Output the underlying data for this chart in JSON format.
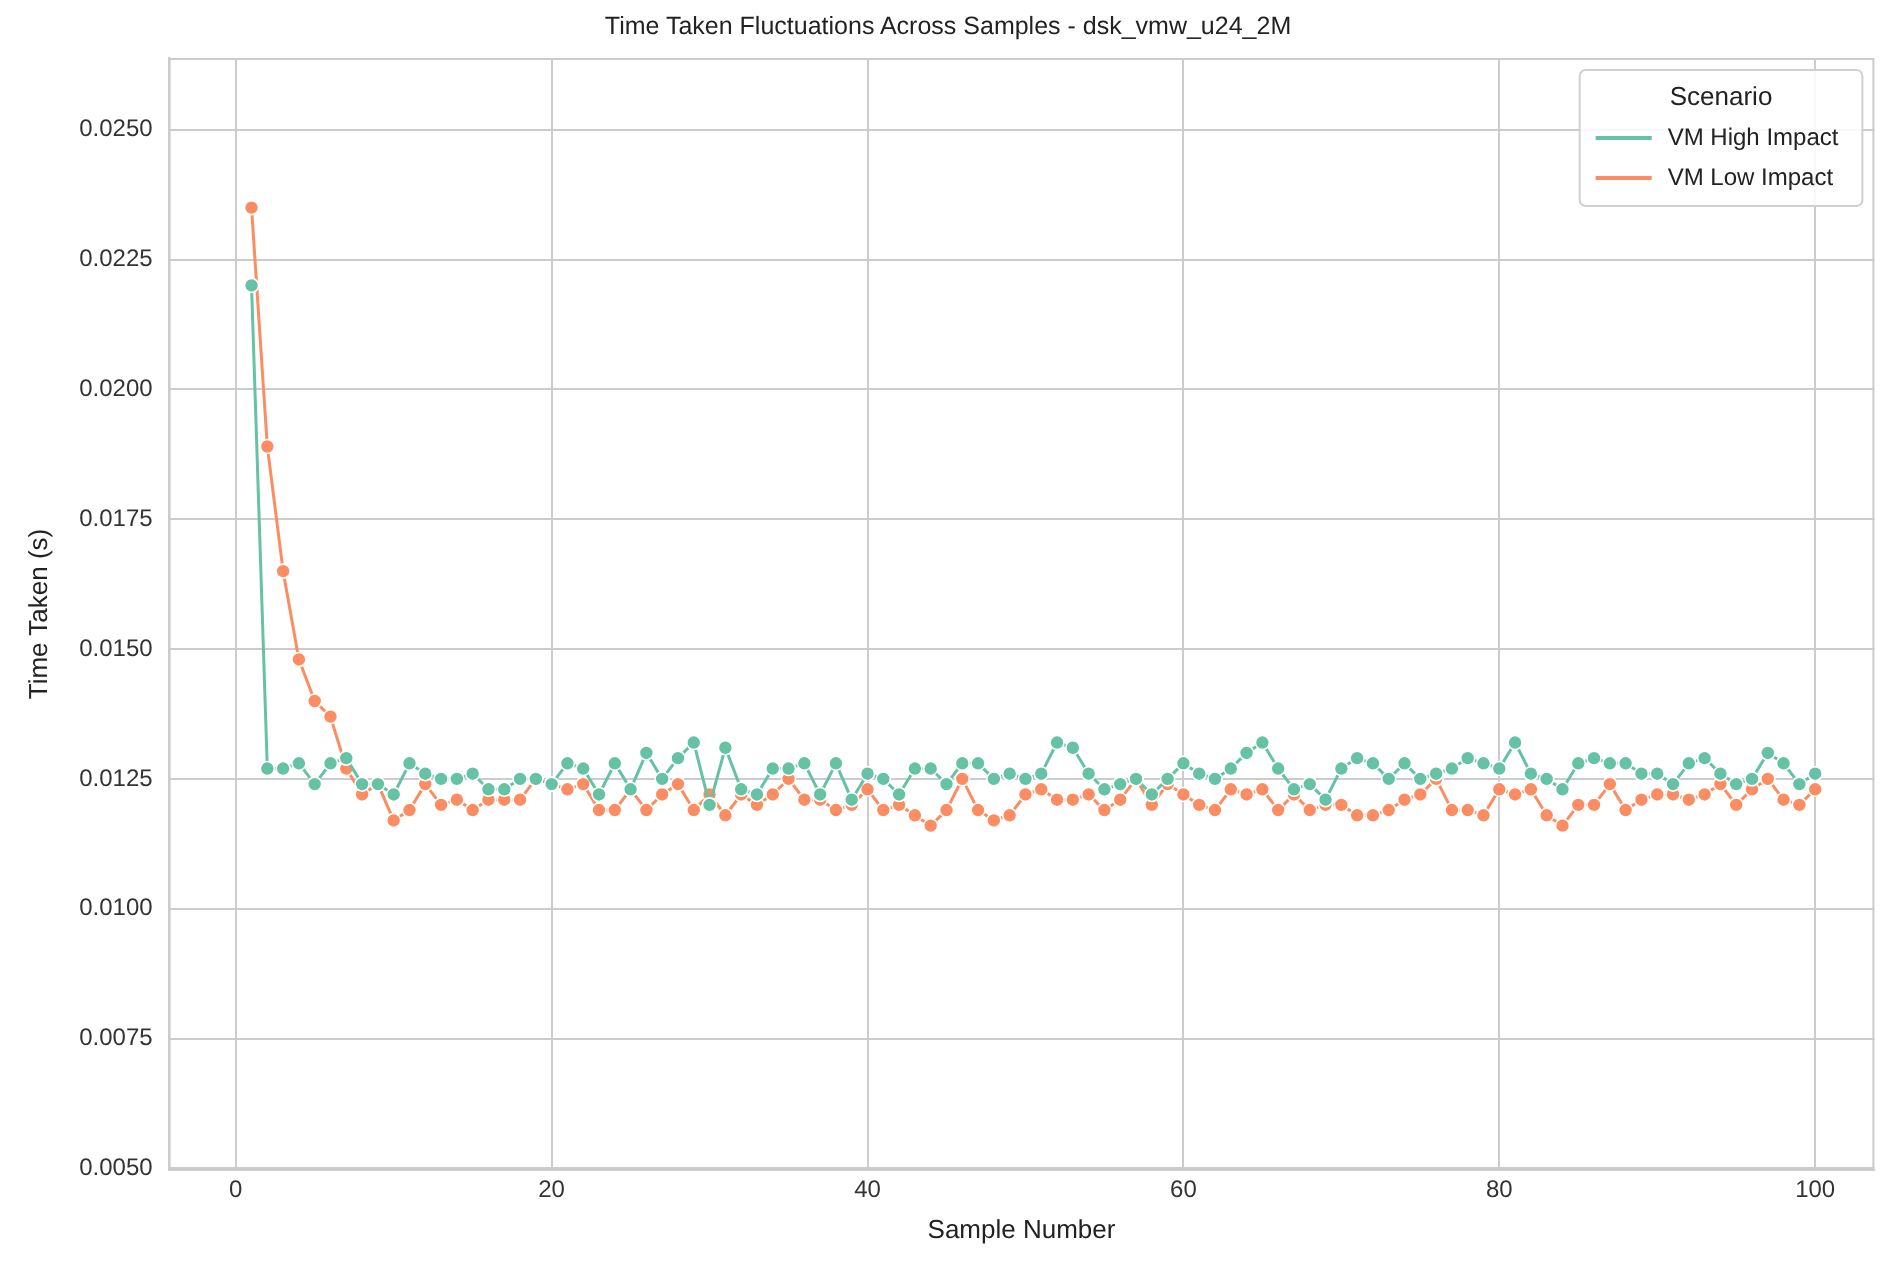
{
  "chart_data": {
    "type": "line",
    "title": "Time Taken Fluctuations Across Samples - dsk_vmw_u24_2M",
    "xlabel": "Sample Number",
    "ylabel": "Time Taken (s)",
    "legend_title": "Scenario",
    "x": [
      1,
      2,
      3,
      4,
      5,
      6,
      7,
      8,
      9,
      10,
      11,
      12,
      13,
      14,
      15,
      16,
      17,
      18,
      19,
      20,
      21,
      22,
      23,
      24,
      25,
      26,
      27,
      28,
      29,
      30,
      31,
      32,
      33,
      34,
      35,
      36,
      37,
      38,
      39,
      40,
      41,
      42,
      43,
      44,
      45,
      46,
      47,
      48,
      49,
      50,
      51,
      52,
      53,
      54,
      55,
      56,
      57,
      58,
      59,
      60,
      61,
      62,
      63,
      64,
      65,
      66,
      67,
      68,
      69,
      70,
      71,
      72,
      73,
      74,
      75,
      76,
      77,
      78,
      79,
      80,
      81,
      82,
      83,
      84,
      85,
      86,
      87,
      88,
      89,
      90,
      91,
      92,
      93,
      94,
      95,
      96,
      97,
      98,
      99,
      100
    ],
    "series": [
      {
        "name": "VM High Impact",
        "color": "#66c2a5",
        "values": [
          0.022,
          0.0127,
          0.0127,
          0.0128,
          0.0124,
          0.0128,
          0.0129,
          0.0124,
          0.0124,
          0.0122,
          0.0128,
          0.0126,
          0.0125,
          0.0125,
          0.0126,
          0.0123,
          0.0123,
          0.0125,
          0.0125,
          0.0124,
          0.0128,
          0.0127,
          0.0122,
          0.0128,
          0.0123,
          0.013,
          0.0125,
          0.0129,
          0.0132,
          0.012,
          0.0131,
          0.0123,
          0.0122,
          0.0127,
          0.0127,
          0.0128,
          0.0122,
          0.0128,
          0.0121,
          0.0126,
          0.0125,
          0.0122,
          0.0127,
          0.0127,
          0.0124,
          0.0128,
          0.0128,
          0.0125,
          0.0126,
          0.0125,
          0.0126,
          0.0132,
          0.0131,
          0.0126,
          0.0123,
          0.0124,
          0.0125,
          0.0122,
          0.0125,
          0.0128,
          0.0126,
          0.0125,
          0.0127,
          0.013,
          0.0132,
          0.0127,
          0.0123,
          0.0124,
          0.0121,
          0.0127,
          0.0129,
          0.0128,
          0.0125,
          0.0128,
          0.0125,
          0.0126,
          0.0127,
          0.0129,
          0.0128,
          0.0127,
          0.0132,
          0.0126,
          0.0125,
          0.0123,
          0.0128,
          0.0129,
          0.0128,
          0.0128,
          0.0126,
          0.0126,
          0.0124,
          0.0128,
          0.0129,
          0.0126,
          0.0124,
          0.0125,
          0.013,
          0.0128,
          0.0124,
          0.0126
        ]
      },
      {
        "name": "VM Low Impact",
        "color": "#fc8d62",
        "values": [
          0.0235,
          0.0189,
          0.0165,
          0.0148,
          0.014,
          0.0137,
          0.0127,
          0.0122,
          0.0124,
          0.0117,
          0.0119,
          0.0124,
          0.012,
          0.0121,
          0.0119,
          0.0121,
          0.0121,
          0.0121,
          0.0125,
          0.0124,
          0.0123,
          0.0124,
          0.0119,
          0.0119,
          0.0123,
          0.0119,
          0.0122,
          0.0124,
          0.0119,
          0.0122,
          0.0118,
          0.0122,
          0.012,
          0.0122,
          0.0125,
          0.0121,
          0.0121,
          0.0119,
          0.012,
          0.0123,
          0.0119,
          0.012,
          0.0118,
          0.0116,
          0.0119,
          0.0125,
          0.0119,
          0.0117,
          0.0118,
          0.0122,
          0.0123,
          0.0121,
          0.0121,
          0.0122,
          0.0119,
          0.0121,
          0.0125,
          0.012,
          0.0124,
          0.0122,
          0.012,
          0.0119,
          0.0123,
          0.0122,
          0.0123,
          0.0119,
          0.0122,
          0.0119,
          0.012,
          0.012,
          0.0118,
          0.0118,
          0.0119,
          0.0121,
          0.0122,
          0.0125,
          0.0119,
          0.0119,
          0.0118,
          0.0123,
          0.0122,
          0.0123,
          0.0118,
          0.0116,
          0.012,
          0.012,
          0.0124,
          0.0119,
          0.0121,
          0.0122,
          0.0122,
          0.0121,
          0.0122,
          0.0124,
          0.012,
          0.0123,
          0.0125,
          0.0121,
          0.012,
          0.0123
        ]
      }
    ],
    "xlim": [
      -4.25,
      103.75
    ],
    "xticks": [
      0,
      20,
      40,
      60,
      80,
      100
    ],
    "ylim": [
      0.00497,
      0.02638
    ],
    "yticks": [
      {
        "value": 0.005,
        "label": "0.0050"
      },
      {
        "value": 0.0075,
        "label": "0.0075"
      },
      {
        "value": 0.01,
        "label": "0.0100"
      },
      {
        "value": 0.0125,
        "label": "0.0125"
      },
      {
        "value": 0.015,
        "label": "0.0150"
      },
      {
        "value": 0.0175,
        "label": "0.0175"
      },
      {
        "value": 0.02,
        "label": "0.0200"
      },
      {
        "value": 0.0225,
        "label": "0.0225"
      },
      {
        "value": 0.025,
        "label": "0.0250"
      }
    ],
    "grid": true,
    "legend": "top right",
    "marker": "circle",
    "line_style": "solid"
  }
}
